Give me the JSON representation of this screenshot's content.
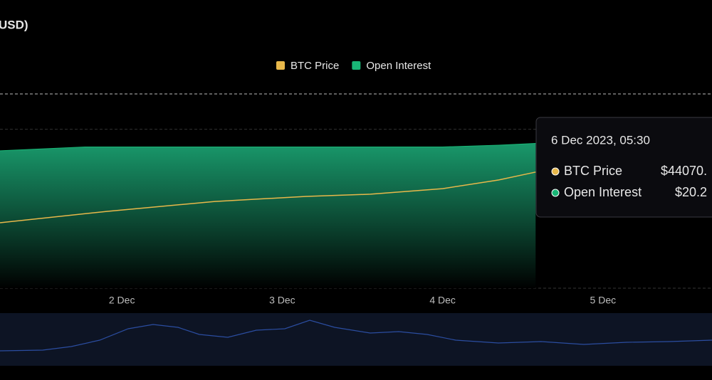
{
  "chart_data": {
    "type": "area",
    "title": "USD)",
    "xlim": [
      1.24,
      5.68
    ],
    "xticks": [
      {
        "value": 2,
        "label": "2 Dec"
      },
      {
        "value": 3,
        "label": "3 Dec"
      },
      {
        "value": 4,
        "label": "4 Dec"
      },
      {
        "value": 5,
        "label": "5 Dec"
      }
    ],
    "ylim": [
      12,
      23
    ],
    "yticks": [
      12,
      21,
      23
    ],
    "y2lim": [
      36000,
      49500
    ],
    "grid": true,
    "series": [
      {
        "name": "BTC Price",
        "color": "#e8b84a",
        "axis": "y2",
        "x": [
          1.24,
          1.91,
          2.58,
          3.15,
          3.55,
          4.0,
          4.35,
          4.58
        ],
        "values": [
          40550,
          41340,
          42030,
          42380,
          42530,
          42920,
          43520,
          44070
        ]
      },
      {
        "name": "Open Interest",
        "color": "#19b676",
        "x": [
          1.24,
          1.77,
          2.58,
          3.55,
          4.0,
          4.35,
          4.58
        ],
        "values": [
          19.78,
          20.0,
          20.0,
          20.0,
          20.0,
          20.1,
          20.2
        ]
      }
    ],
    "tooltip": {
      "title": "6 Dec 2023, 05:30",
      "items": [
        "$44070.",
        "$20.2"
      ]
    }
  }
}
